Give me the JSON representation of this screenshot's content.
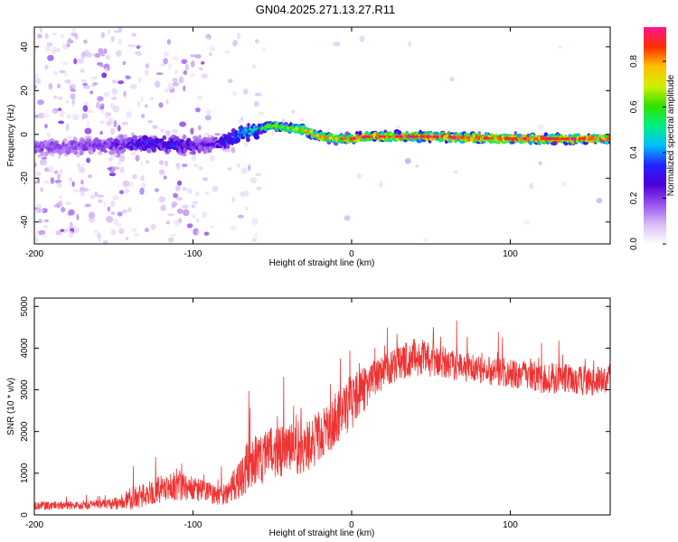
{
  "title": "GN04.2025.271.13.27.R11",
  "chart_data": [
    {
      "type": "heatmap",
      "title": "GN04.2025.271.13.27.R11",
      "xlabel": "Height of straight line (km)",
      "ylabel": "Frequency (Hz)",
      "xlim": [
        -200,
        163
      ],
      "ylim": [
        -50,
        49
      ],
      "xticks": [
        -200,
        -100,
        0,
        100
      ],
      "yticks": [
        -40,
        -20,
        0,
        20,
        40
      ],
      "colorbar": {
        "label": "Normalized spectral amplitude",
        "range": [
          0,
          0.95
        ],
        "ticks": [
          0.0,
          0.2,
          0.4,
          0.6,
          0.8
        ],
        "colormap": [
          "#ffffff",
          "#d7bdf5",
          "#9a52ee",
          "#4b00d8",
          "#2323ff",
          "#00bfff",
          "#00f080",
          "#30e000",
          "#d0f000",
          "#ffc000",
          "#ff3000",
          "#ff1493"
        ]
      },
      "ridge": {
        "x": [
          -200,
          -150,
          -130,
          -110,
          -90,
          -80,
          -70,
          -60,
          -50,
          -40,
          -30,
          -20,
          -10,
          0,
          10,
          50,
          100,
          163
        ],
        "frequency": [
          -6,
          -5,
          -4,
          -5,
          -5,
          -3,
          0,
          2,
          4,
          3,
          2,
          -1,
          -2,
          -2,
          -1,
          -1,
          -2,
          -2
        ],
        "peak_amplitude": [
          0.2,
          0.25,
          0.35,
          0.35,
          0.25,
          0.35,
          0.45,
          0.55,
          0.7,
          0.7,
          0.85,
          0.85,
          0.8,
          0.95,
          0.95,
          0.95,
          0.95,
          0.95
        ]
      }
    },
    {
      "type": "line",
      "xlabel": "Height of straight line (km)",
      "ylabel": "SNR (10 * v/v)",
      "xlim": [
        -200,
        163
      ],
      "ylim": [
        0,
        5200
      ],
      "xticks": [
        -200,
        -100,
        0,
        100
      ],
      "yticks": [
        0,
        1000,
        2000,
        3000,
        4000,
        5000
      ],
      "series": [
        {
          "name": "SNR",
          "color": "#ee3333",
          "x": [
            -200,
            -180,
            -160,
            -150,
            -140,
            -130,
            -120,
            -110,
            -100,
            -90,
            -80,
            -70,
            -65,
            -60,
            -50,
            -40,
            -30,
            -20,
            -10,
            0,
            10,
            20,
            30,
            40,
            50,
            60,
            70,
            80,
            90,
            100,
            110,
            120,
            130,
            140,
            150,
            163
          ],
          "values": [
            220,
            230,
            240,
            270,
            380,
            480,
            620,
            700,
            620,
            520,
            480,
            900,
            1200,
            1300,
            1500,
            1550,
            1600,
            1900,
            2300,
            2700,
            3100,
            3450,
            3650,
            3800,
            3700,
            3650,
            3550,
            3500,
            3450,
            3400,
            3350,
            3250,
            3300,
            3250,
            3200,
            3250
          ],
          "noise": [
            150,
            150,
            150,
            180,
            380,
            400,
            500,
            500,
            430,
            380,
            350,
            700,
            900,
            900,
            900,
            900,
            900,
            900,
            900,
            950,
            700,
            600,
            600,
            700,
            600,
            550,
            500,
            500,
            500,
            500,
            500,
            500,
            550,
            500,
            500,
            450
          ]
        }
      ]
    }
  ]
}
